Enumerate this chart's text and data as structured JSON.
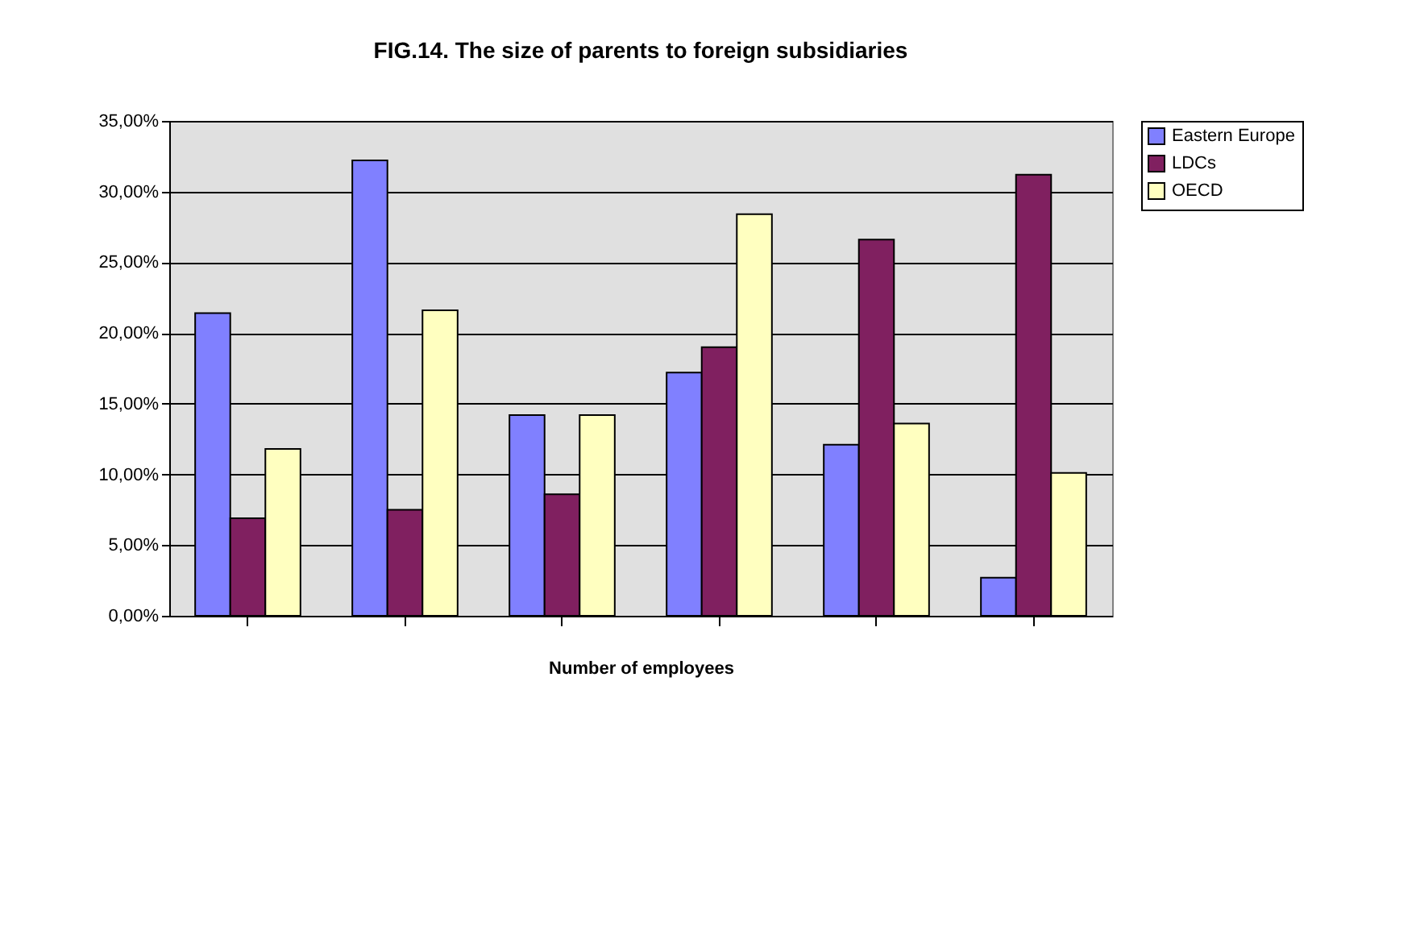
{
  "chart_data": {
    "type": "bar",
    "title": "FIG.14.  The size of parents to foreign subsidiaries",
    "xlabel": "Number of employees",
    "categories": [
      null,
      null,
      null,
      null,
      null,
      null
    ],
    "series": [
      {
        "name": "Eastern Europe",
        "color": "#8080ff",
        "values": [
          21.4,
          32.2,
          14.2,
          17.2,
          12.1,
          2.7
        ]
      },
      {
        "name": "LDCs",
        "color": "#802060",
        "values": [
          6.9,
          7.5,
          8.6,
          19.0,
          26.6,
          31.2
        ]
      },
      {
        "name": "OECD",
        "color": "#ffffc0",
        "values": [
          11.8,
          21.6,
          14.2,
          28.4,
          13.6,
          10.1
        ]
      }
    ],
    "ylim": [
      0,
      35
    ],
    "yticks": [
      {
        "value": 0,
        "label": "0,00%"
      },
      {
        "value": 5,
        "label": "5,00%"
      },
      {
        "value": 10,
        "label": "10,00%"
      },
      {
        "value": 15,
        "label": "15,00%"
      },
      {
        "value": 20,
        "label": "20,00%"
      },
      {
        "value": 25,
        "label": "25,00%"
      },
      {
        "value": 30,
        "label": "30,00%"
      },
      {
        "value": 35,
        "label": "35,00%"
      }
    ],
    "grid": "y",
    "legend": "right",
    "tick_labels": "y"
  }
}
